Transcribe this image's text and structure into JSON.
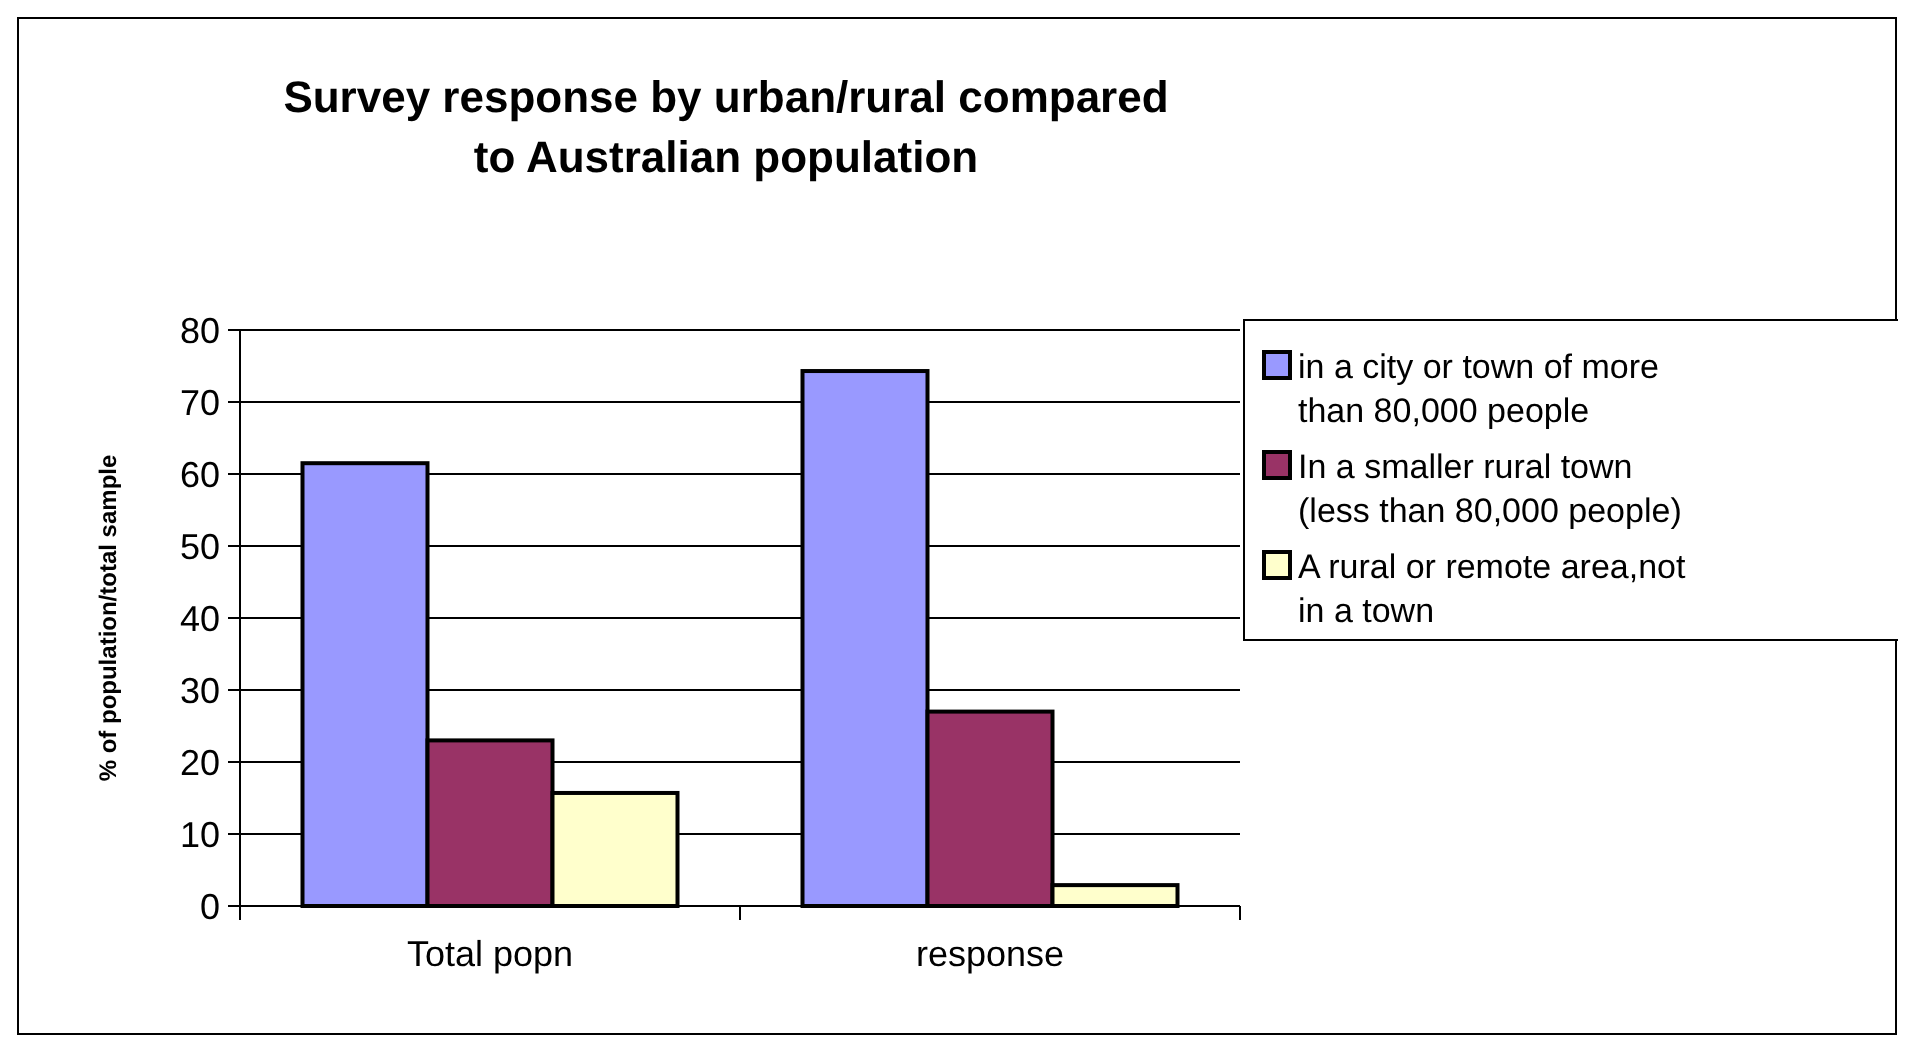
{
  "chart_data": {
    "type": "bar",
    "title": "Survey response by urban/rural compared to Australian population",
    "ylabel": "% of population/total sample",
    "categories": [
      "Total popn",
      "response"
    ],
    "series": [
      {
        "name": "in a city or town of more than 80,000 people",
        "color": "#9999ff",
        "values": [
          61.5,
          74.3
        ]
      },
      {
        "name": "In a smaller rural town (less than 80,000 people)",
        "color": "#993366",
        "values": [
          23,
          27
        ]
      },
      {
        "name": "A rural or remote area,not in a town",
        "color": "#ffffcc",
        "values": [
          15.7,
          2.9
        ]
      }
    ],
    "ylim": [
      0,
      80
    ],
    "yticks": [
      0,
      10,
      20,
      30,
      40,
      50,
      60,
      70,
      80
    ],
    "grid": "y",
    "legend": "right"
  }
}
